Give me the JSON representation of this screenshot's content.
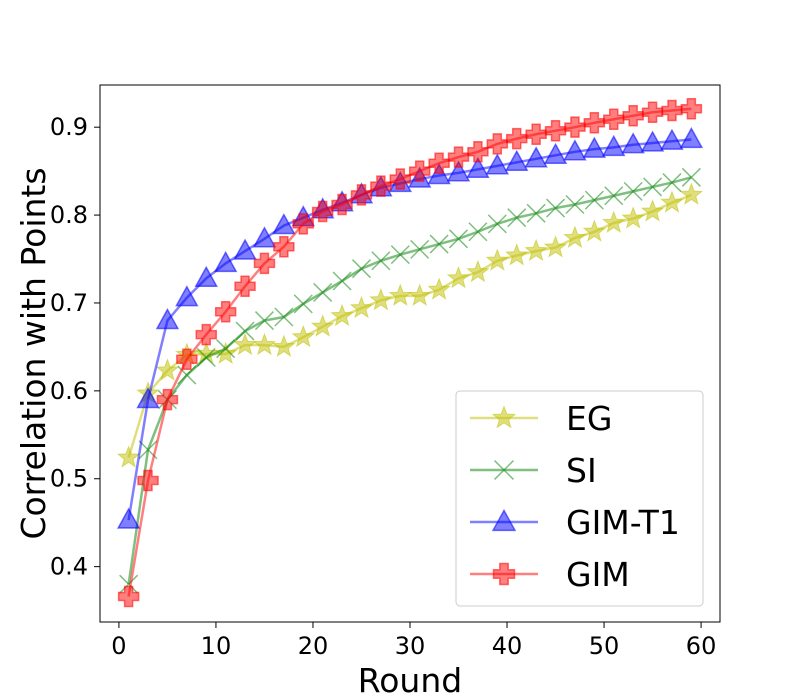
{
  "chart_data": {
    "type": "line",
    "title": "",
    "xlabel": "Round",
    "ylabel": "Correlation with Points",
    "xlim": [
      -1.95,
      61.95
    ],
    "ylim": [
      0.337,
      0.948
    ],
    "xticks": [
      0,
      10,
      20,
      30,
      40,
      50,
      60
    ],
    "yticks": [
      0.4,
      0.5,
      0.6,
      0.7,
      0.8,
      0.9
    ],
    "xtick_labels": [
      "0",
      "10",
      "20",
      "30",
      "40",
      "50",
      "60"
    ],
    "ytick_labels": [
      "0.4",
      "0.5",
      "0.6",
      "0.7",
      "0.8",
      "0.9"
    ],
    "grid": false,
    "legend_position": "lower-right",
    "x": [
      1,
      3,
      5,
      7,
      9,
      11,
      13,
      15,
      17,
      19,
      21,
      23,
      25,
      27,
      29,
      31,
      33,
      35,
      37,
      39,
      41,
      43,
      45,
      47,
      49,
      51,
      53,
      55,
      57,
      59
    ],
    "series": [
      {
        "name": "EG",
        "color": "#bfbf00",
        "marker": "star",
        "values": [
          0.524,
          0.597,
          0.623,
          0.641,
          0.642,
          0.642,
          0.652,
          0.652,
          0.65,
          0.661,
          0.673,
          0.685,
          0.694,
          0.703,
          0.708,
          0.708,
          0.715,
          0.728,
          0.735,
          0.748,
          0.754,
          0.759,
          0.763,
          0.774,
          0.781,
          0.791,
          0.796,
          0.804,
          0.814,
          0.823
        ]
      },
      {
        "name": "SI",
        "color": "#008000",
        "marker": "x",
        "values": [
          0.38,
          0.533,
          0.59,
          0.618,
          0.638,
          0.648,
          0.668,
          0.68,
          0.684,
          0.699,
          0.712,
          0.725,
          0.739,
          0.748,
          0.755,
          0.761,
          0.767,
          0.773,
          0.781,
          0.79,
          0.797,
          0.802,
          0.808,
          0.812,
          0.817,
          0.822,
          0.827,
          0.832,
          0.837,
          0.843
        ]
      },
      {
        "name": "GIM-T1",
        "color": "#0000ff",
        "marker": "triangle",
        "values": [
          0.453,
          0.59,
          0.68,
          0.706,
          0.728,
          0.745,
          0.759,
          0.773,
          0.788,
          0.797,
          0.806,
          0.814,
          0.823,
          0.831,
          0.836,
          0.841,
          0.845,
          0.848,
          0.852,
          0.856,
          0.86,
          0.864,
          0.868,
          0.872,
          0.875,
          0.877,
          0.88,
          0.882,
          0.884,
          0.886
        ]
      },
      {
        "name": "GIM",
        "color": "#ff0000",
        "marker": "plus",
        "values": [
          0.366,
          0.498,
          0.59,
          0.636,
          0.664,
          0.69,
          0.719,
          0.745,
          0.764,
          0.79,
          0.804,
          0.812,
          0.823,
          0.833,
          0.841,
          0.85,
          0.859,
          0.866,
          0.872,
          0.881,
          0.887,
          0.892,
          0.896,
          0.9,
          0.905,
          0.909,
          0.913,
          0.917,
          0.919,
          0.921
        ]
      }
    ]
  }
}
